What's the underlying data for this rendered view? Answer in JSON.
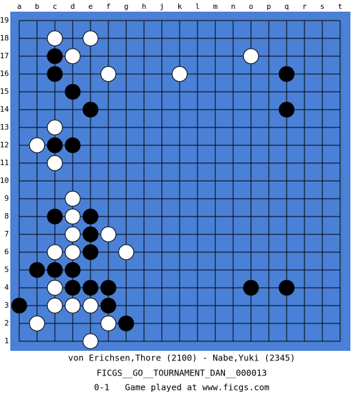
{
  "board": {
    "columns": [
      "a",
      "b",
      "c",
      "d",
      "e",
      "f",
      "g",
      "h",
      "j",
      "k",
      "l",
      "m",
      "n",
      "o",
      "p",
      "q",
      "r",
      "s",
      "t"
    ],
    "rows": [
      19,
      18,
      17,
      16,
      15,
      14,
      13,
      12,
      11,
      10,
      9,
      8,
      7,
      6,
      5,
      4,
      3,
      2,
      1
    ],
    "stones": [
      {
        "color": "white",
        "col": "c",
        "row": 18
      },
      {
        "color": "white",
        "col": "e",
        "row": 18
      },
      {
        "color": "black",
        "col": "c",
        "row": 17
      },
      {
        "color": "white",
        "col": "d",
        "row": 17
      },
      {
        "color": "white",
        "col": "o",
        "row": 17
      },
      {
        "color": "black",
        "col": "c",
        "row": 16
      },
      {
        "color": "white",
        "col": "f",
        "row": 16
      },
      {
        "color": "white",
        "col": "k",
        "row": 16
      },
      {
        "color": "black",
        "col": "q",
        "row": 16
      },
      {
        "color": "black",
        "col": "d",
        "row": 15
      },
      {
        "color": "black",
        "col": "e",
        "row": 14
      },
      {
        "color": "black",
        "col": "q",
        "row": 14
      },
      {
        "color": "white",
        "col": "c",
        "row": 13
      },
      {
        "color": "white",
        "col": "b",
        "row": 12
      },
      {
        "color": "black",
        "col": "c",
        "row": 12
      },
      {
        "color": "black",
        "col": "d",
        "row": 12
      },
      {
        "color": "white",
        "col": "c",
        "row": 11
      },
      {
        "color": "white",
        "col": "d",
        "row": 9
      },
      {
        "color": "black",
        "col": "c",
        "row": 8
      },
      {
        "color": "white",
        "col": "d",
        "row": 8
      },
      {
        "color": "black",
        "col": "e",
        "row": 8
      },
      {
        "color": "white",
        "col": "d",
        "row": 7
      },
      {
        "color": "black",
        "col": "e",
        "row": 7
      },
      {
        "color": "white",
        "col": "f",
        "row": 7
      },
      {
        "color": "white",
        "col": "c",
        "row": 6
      },
      {
        "color": "white",
        "col": "d",
        "row": 6
      },
      {
        "color": "black",
        "col": "e",
        "row": 6
      },
      {
        "color": "white",
        "col": "g",
        "row": 6
      },
      {
        "color": "black",
        "col": "b",
        "row": 5
      },
      {
        "color": "black",
        "col": "c",
        "row": 5
      },
      {
        "color": "black",
        "col": "d",
        "row": 5
      },
      {
        "color": "white",
        "col": "c",
        "row": 4
      },
      {
        "color": "black",
        "col": "d",
        "row": 4
      },
      {
        "color": "black",
        "col": "e",
        "row": 4
      },
      {
        "color": "black",
        "col": "f",
        "row": 4
      },
      {
        "color": "black",
        "col": "o",
        "row": 4
      },
      {
        "color": "black",
        "col": "q",
        "row": 4
      },
      {
        "color": "black",
        "col": "a",
        "row": 3
      },
      {
        "color": "white",
        "col": "c",
        "row": 3
      },
      {
        "color": "white",
        "col": "d",
        "row": 3
      },
      {
        "color": "white",
        "col": "e",
        "row": 3
      },
      {
        "color": "black",
        "col": "f",
        "row": 3
      },
      {
        "color": "white",
        "col": "b",
        "row": 2
      },
      {
        "color": "white",
        "col": "f",
        "row": 2
      },
      {
        "color": "black",
        "col": "g",
        "row": 2
      },
      {
        "color": "white",
        "col": "e",
        "row": 1
      }
    ]
  },
  "footer": {
    "players": "von Erichsen,Thore (2100) - Nabe,Yuki (2345)",
    "event": "FICGS__GO__TOURNAMENT_DAN__000013",
    "result": "0-1   Game played at www.ficgs.com"
  }
}
